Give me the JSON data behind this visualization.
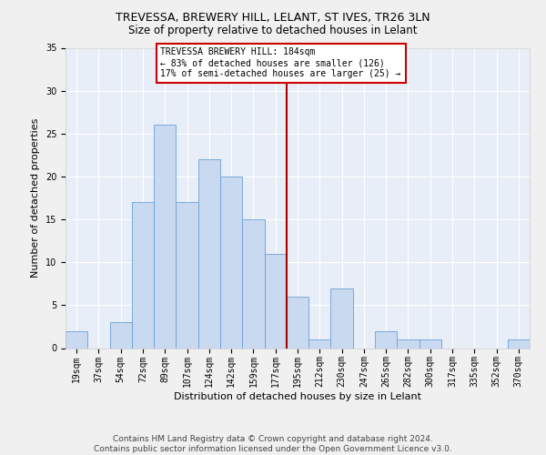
{
  "title1": "TREVESSA, BREWERY HILL, LELANT, ST IVES, TR26 3LN",
  "title2": "Size of property relative to detached houses in Lelant",
  "xlabel": "Distribution of detached houses by size in Lelant",
  "ylabel": "Number of detached properties",
  "footnote": "Contains HM Land Registry data © Crown copyright and database right 2024.\nContains public sector information licensed under the Open Government Licence v3.0.",
  "bin_labels": [
    "19sqm",
    "37sqm",
    "54sqm",
    "72sqm",
    "89sqm",
    "107sqm",
    "124sqm",
    "142sqm",
    "159sqm",
    "177sqm",
    "195sqm",
    "212sqm",
    "230sqm",
    "247sqm",
    "265sqm",
    "282sqm",
    "300sqm",
    "317sqm",
    "335sqm",
    "352sqm",
    "370sqm"
  ],
  "bar_heights": [
    2,
    0,
    3,
    17,
    26,
    17,
    22,
    20,
    15,
    11,
    6,
    1,
    7,
    0,
    2,
    1,
    1,
    0,
    0,
    0,
    1
  ],
  "bar_color": "#c8d9f0",
  "bar_edge_color": "#6a9fd8",
  "vline_color": "#aa0000",
  "annotation_text": "TREVESSA BREWERY HILL: 184sqm\n← 83% of detached houses are smaller (126)\n17% of semi-detached houses are larger (25) →",
  "annotation_box_color": "#ffffff",
  "annotation_box_edge": "#cc0000",
  "ylim": [
    0,
    35
  ],
  "yticks": [
    0,
    5,
    10,
    15,
    20,
    25,
    30,
    35
  ],
  "background_color": "#e8eef8",
  "grid_color": "#ffffff",
  "fig_bg_color": "#f0f0f0",
  "title1_fontsize": 9,
  "title2_fontsize": 8.5,
  "axis_label_fontsize": 8,
  "tick_fontsize": 7,
  "footnote_fontsize": 6.5,
  "vline_pos": 9.5
}
